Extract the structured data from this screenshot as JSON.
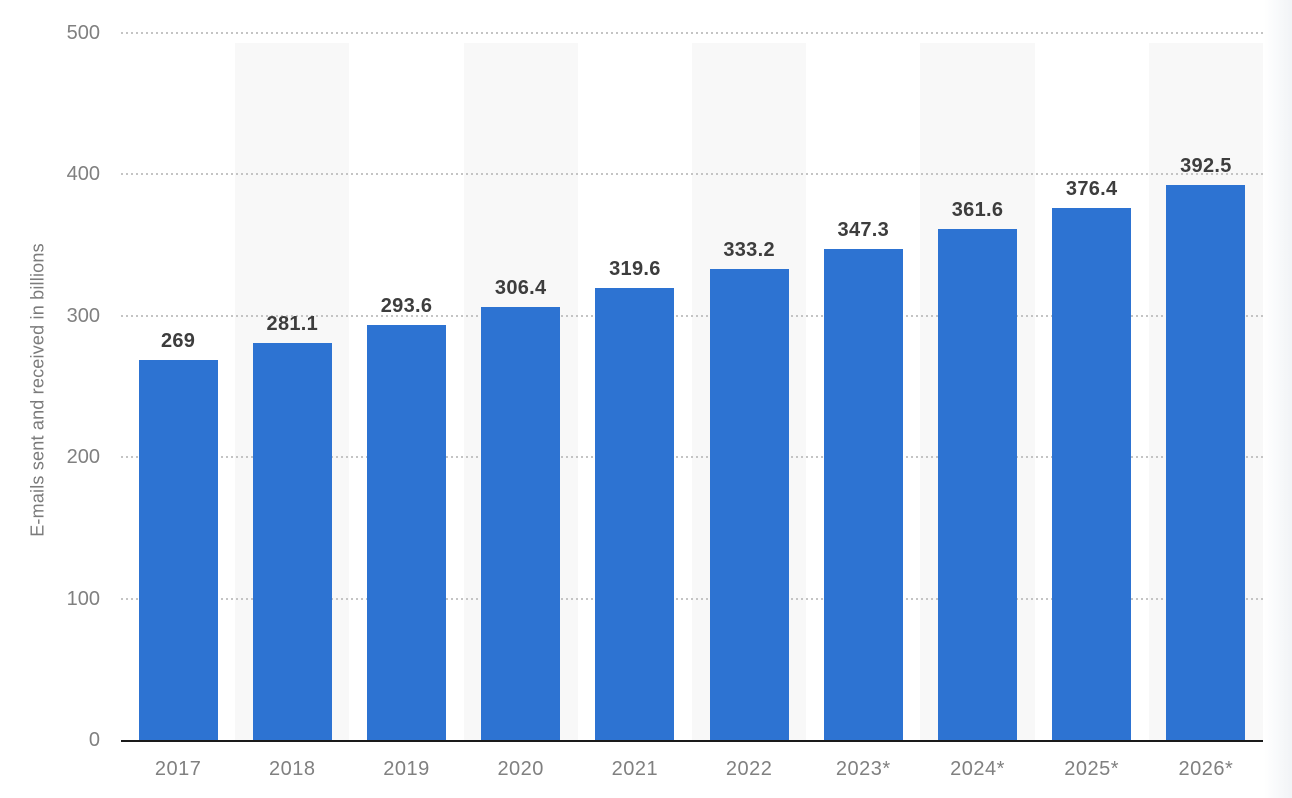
{
  "chart_data": {
    "type": "bar",
    "categories": [
      "2017",
      "2018",
      "2019",
      "2020",
      "2021",
      "2022",
      "2023*",
      "2024*",
      "2025*",
      "2026*"
    ],
    "values": [
      269,
      281.1,
      293.6,
      306.4,
      319.6,
      333.2,
      347.3,
      361.6,
      376.4,
      392.5
    ],
    "value_labels": [
      "269",
      "281.1",
      "293.6",
      "306.4",
      "319.6",
      "333.2",
      "347.3",
      "361.6",
      "376.4",
      "392.5"
    ],
    "xlabel": "",
    "ylabel": "E-mails sent and received in billions",
    "ylim": [
      0,
      500
    ],
    "yticks": [
      0,
      100,
      200,
      300,
      400,
      500
    ],
    "grid": "dotted-horizontal",
    "legend": "none",
    "alternating_column_bands": true,
    "colors": {
      "bar": "#2d73d2",
      "band": "#f8f8f8",
      "grid_dots": "#c4c4c4",
      "axis_line": "#1a1a1a",
      "tick_label": "#808080",
      "value_label": "#3d3d3d",
      "axis_title": "#7b7b7b",
      "background": "#ffffff"
    }
  }
}
